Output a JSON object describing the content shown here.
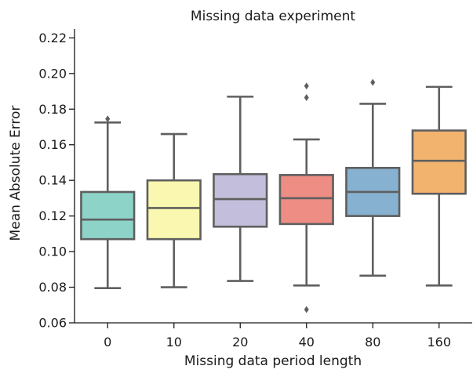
{
  "chart_data": {
    "type": "box",
    "title": "Missing data experiment",
    "xlabel": "Missing data period length",
    "ylabel": "Mean Absolute Error",
    "categories": [
      "0",
      "10",
      "20",
      "40",
      "80",
      "160"
    ],
    "ylim": [
      0.06,
      0.225
    ],
    "yticks": [
      0.06,
      0.08,
      0.1,
      0.12,
      0.14,
      0.16,
      0.18,
      0.2,
      0.22
    ],
    "ytick_labels": [
      "0.06",
      "0.08",
      "0.10",
      "0.12",
      "0.14",
      "0.16",
      "0.18",
      "0.20",
      "0.22"
    ],
    "grid": false,
    "boxes": [
      {
        "category": "0",
        "whisker_low": 0.0795,
        "q1": 0.107,
        "median": 0.118,
        "q3": 0.1335,
        "whisker_high": 0.1725,
        "outliers": [
          0.1745
        ],
        "color": "#8dd3c7"
      },
      {
        "category": "10",
        "whisker_low": 0.08,
        "q1": 0.107,
        "median": 0.1245,
        "q3": 0.14,
        "whisker_high": 0.166,
        "outliers": [],
        "color": "#f9f7b0"
      },
      {
        "category": "20",
        "whisker_low": 0.0835,
        "q1": 0.114,
        "median": 0.1295,
        "q3": 0.1435,
        "whisker_high": 0.187,
        "outliers": [],
        "color": "#c2bedb"
      },
      {
        "category": "40",
        "whisker_low": 0.081,
        "q1": 0.1155,
        "median": 0.13,
        "q3": 0.143,
        "whisker_high": 0.163,
        "outliers": [
          0.193,
          0.1865,
          0.0675
        ],
        "color": "#ee8d84"
      },
      {
        "category": "80",
        "whisker_low": 0.0865,
        "q1": 0.12,
        "median": 0.1335,
        "q3": 0.147,
        "whisker_high": 0.183,
        "outliers": [
          0.195
        ],
        "color": "#87b1d0"
      },
      {
        "category": "160",
        "whisker_low": 0.081,
        "q1": 0.1325,
        "median": 0.151,
        "q3": 0.168,
        "whisker_high": 0.1925,
        "outliers": [],
        "color": "#f2b36f"
      }
    ],
    "line_color": "#5f5f5f"
  }
}
